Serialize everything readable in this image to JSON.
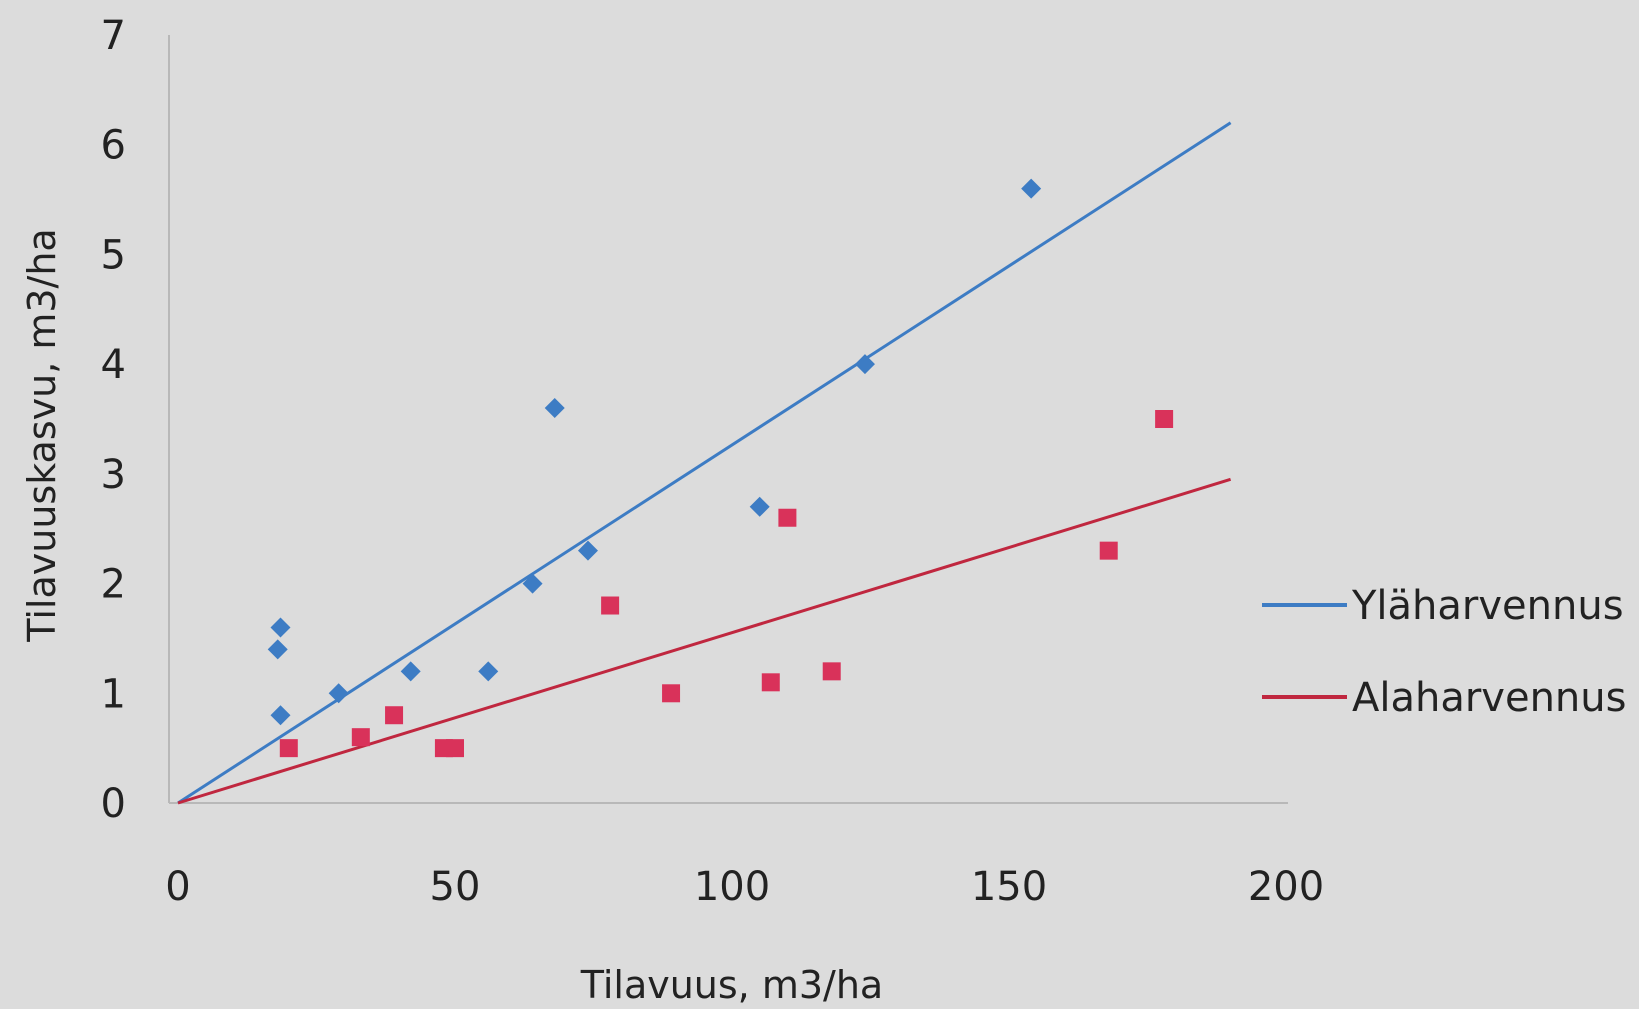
{
  "chart_data": {
    "type": "scatter",
    "title": "",
    "xlabel": "Tilavuus, m3/ha",
    "ylabel": "Tilavuuskasvu, m3/ha",
    "xlim": [
      0,
      200
    ],
    "ylim": [
      0,
      7
    ],
    "xticks": [
      0,
      50,
      100,
      150,
      200
    ],
    "yticks": [
      0,
      1,
      2,
      3,
      4,
      5,
      6,
      7
    ],
    "grid": false,
    "legend_position": "right",
    "series": [
      {
        "name": "Yläharvennus",
        "color": "#3d7cc4",
        "marker": "diamond",
        "points": [
          [
            18,
            1.4
          ],
          [
            18.5,
            1.6
          ],
          [
            18.5,
            0.8
          ],
          [
            29,
            1.0
          ],
          [
            42,
            1.2
          ],
          [
            56,
            1.2
          ],
          [
            64,
            2.0
          ],
          [
            68,
            3.6
          ],
          [
            74,
            2.3
          ],
          [
            105,
            2.7
          ],
          [
            124,
            4.0
          ],
          [
            154,
            5.6
          ]
        ],
        "trendline": {
          "x": [
            0,
            190
          ],
          "y": [
            0,
            6.2
          ]
        }
      },
      {
        "name": "Alaharvennus",
        "color": "#d9325a",
        "line_color": "#c0273f",
        "marker": "square",
        "points": [
          [
            20,
            0.5
          ],
          [
            33,
            0.6
          ],
          [
            39,
            0.8
          ],
          [
            48,
            0.5
          ],
          [
            50,
            0.5
          ],
          [
            78,
            1.8
          ],
          [
            89,
            1.0
          ],
          [
            107,
            1.1
          ],
          [
            110,
            2.6
          ],
          [
            118,
            1.2
          ],
          [
            168,
            2.3
          ],
          [
            178,
            3.5
          ]
        ],
        "trendline": {
          "x": [
            0,
            190
          ],
          "y": [
            0,
            2.95
          ]
        }
      }
    ]
  }
}
